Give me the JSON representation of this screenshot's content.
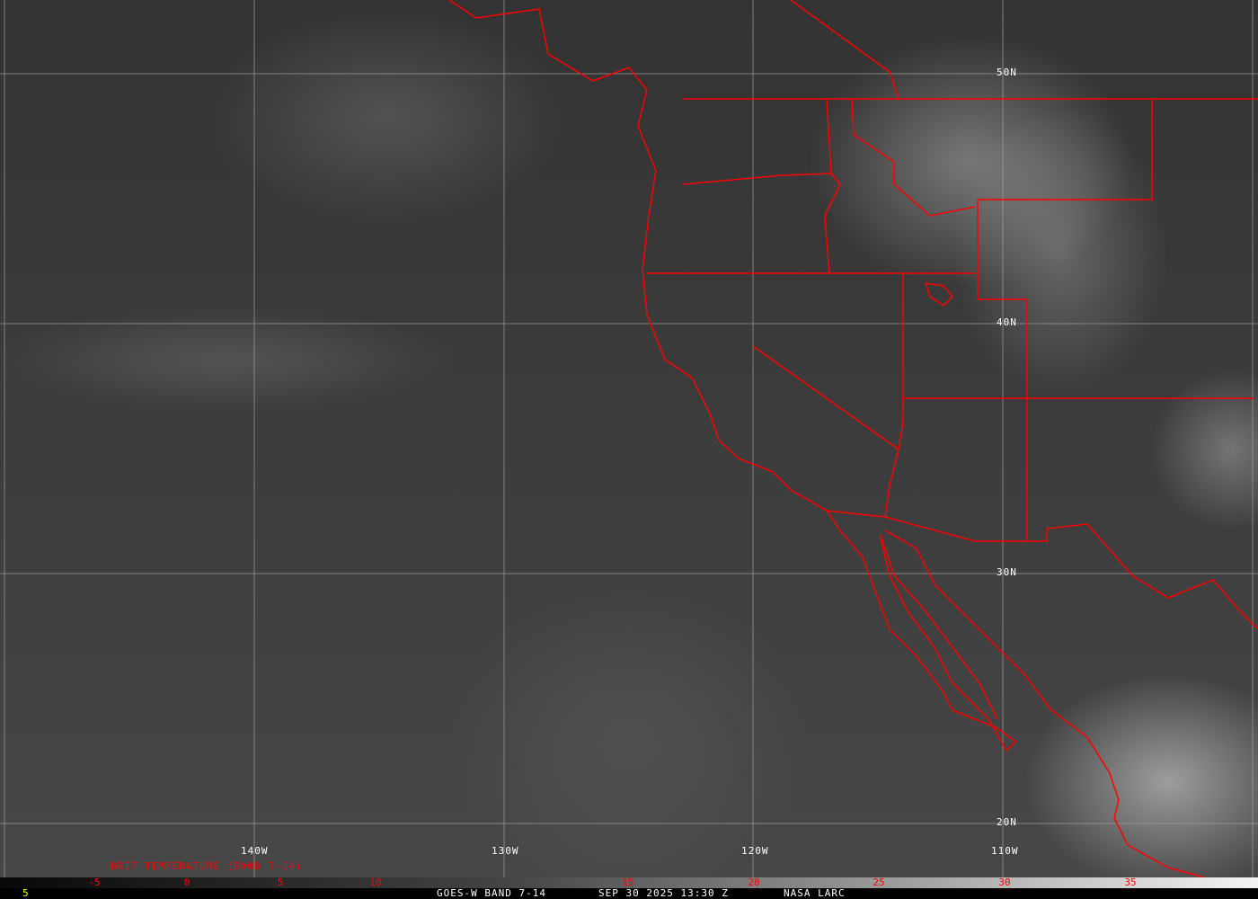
{
  "grid": {
    "longitude_labels": [
      "140W",
      "130W",
      "120W",
      "110W"
    ],
    "latitude_labels": [
      "50N",
      "40N",
      "30N",
      "20N"
    ]
  },
  "colors": {
    "borders": "#ff0000",
    "grid": "#a0a0a0",
    "scale_ticks": "#ff0000"
  },
  "legend": {
    "title": "BRIT TEMPERATURE (BAND 7-14)",
    "ticks": [
      "-5",
      "0",
      "5",
      "10",
      "15",
      "20",
      "25",
      "30",
      "35"
    ]
  },
  "footer": {
    "frame_number": "5",
    "satellite": "GOES-W BAND 7-14",
    "datetime": "SEP 30 2025 13:30 Z",
    "source": "NASA LARC"
  }
}
